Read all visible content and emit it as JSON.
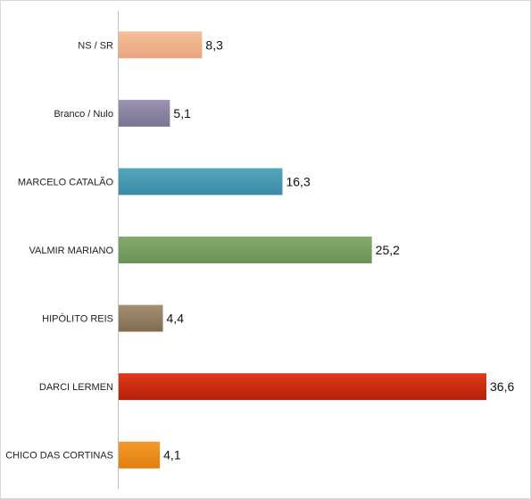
{
  "chart_data": {
    "type": "bar",
    "orientation": "horizontal",
    "title": "",
    "xlabel": "",
    "ylabel": "",
    "grid": false,
    "xlim": [
      0,
      36.6
    ],
    "categories": [
      "NS / SR",
      "Branco / Nulo",
      "MARCELO CATALÃO",
      "VALMIR MARIANO",
      "HIPÓLITO REIS",
      "DARCI LERMEN",
      "CHICO DAS CORTINAS"
    ],
    "values": [
      8.3,
      5.1,
      16.3,
      25.2,
      4.4,
      36.6,
      4.1
    ],
    "value_labels": [
      "8,3",
      "5,1",
      "16,3",
      "25,2",
      "4,4",
      "36,6",
      "4,1"
    ],
    "colors": [
      [
        "#f5c09a",
        "#e8a57c"
      ],
      [
        "#9a94b0",
        "#7a7393"
      ],
      [
        "#54a6bd",
        "#3a8aa3"
      ],
      [
        "#84aa6c",
        "#6b9256"
      ],
      [
        "#a48f72",
        "#806c50"
      ],
      [
        "#e03a1a",
        "#b51f07"
      ],
      [
        "#f59a2a",
        "#e07f0e"
      ]
    ]
  }
}
